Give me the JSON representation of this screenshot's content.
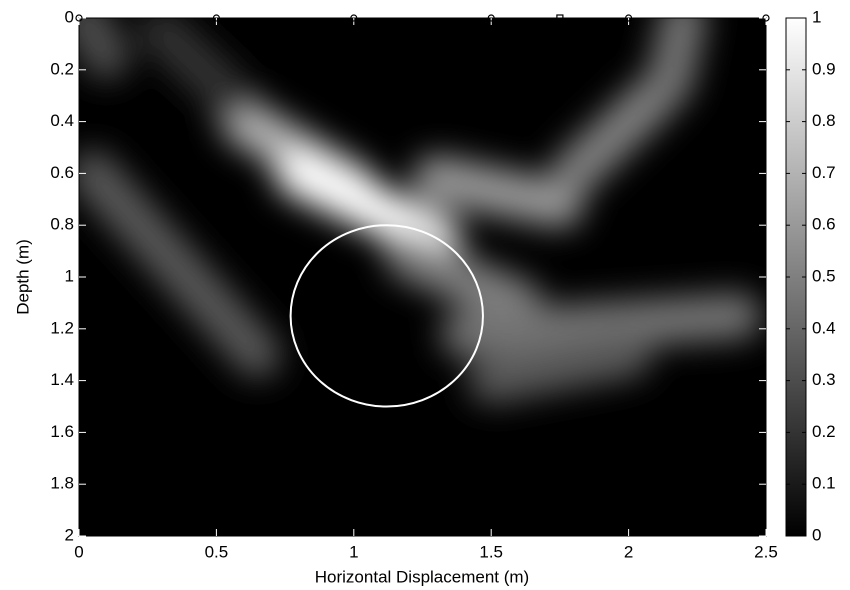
{
  "chart_data": {
    "type": "heatmap",
    "xlabel": "Horizontal Displacement (m)",
    "ylabel": "Depth (m)",
    "xlim": [
      0,
      2.5
    ],
    "xticks": [
      0,
      0.5,
      1,
      1.5,
      2,
      2.5
    ],
    "ylim": [
      2,
      0
    ],
    "yticks": [
      0,
      0.2,
      0.4,
      0.6,
      0.8,
      1,
      1.2,
      1.4,
      1.6,
      1.8,
      2
    ],
    "clim": [
      0,
      1
    ],
    "cticks": [
      0,
      0.1,
      0.2,
      0.3,
      0.4,
      0.5,
      0.6,
      0.7,
      0.8,
      0.9,
      1
    ],
    "ridges": [
      {
        "x": [
          0.6,
          1.0
        ],
        "y": [
          0.4,
          0.65
        ],
        "value": 0.7
      },
      {
        "x": [
          0.8,
          1.3
        ],
        "y": [
          0.6,
          0.85
        ],
        "value": 1
      },
      {
        "x": [
          1.2,
          1.6
        ],
        "y": [
          0.92,
          1.1
        ],
        "value": 0.5
      },
      {
        "x": [
          1.3,
          1.75
        ],
        "y": [
          0.62,
          0.72
        ],
        "value": 0.6
      },
      {
        "x": [
          1.8,
          2.1
        ],
        "y": [
          0.6,
          0.3
        ],
        "value": 0.5
      },
      {
        "x": [
          2.15,
          2.2
        ],
        "y": [
          0.25,
          0
        ],
        "value": 0.45
      },
      {
        "x": [
          0.05,
          0.65
        ],
        "y": [
          0.6,
          1.3
        ],
        "value": 0.35
      },
      {
        "x": [
          1.4,
          2.4
        ],
        "y": [
          1.22,
          1.15
        ],
        "value": 0.45
      },
      {
        "x": [
          1.5,
          2.0
        ],
        "y": [
          1.4,
          1.3
        ],
        "value": 0.35
      },
      {
        "x": [
          0.02,
          0.1
        ],
        "y": [
          0,
          0.15
        ],
        "value": 0.3
      },
      {
        "x": [
          0.3,
          0.55
        ],
        "y": [
          0.05,
          0.3
        ],
        "value": 0.2
      }
    ],
    "circle": {
      "x": 1.12,
      "y": 1.15,
      "r": 0.35
    },
    "sensors_x": [
      0,
      0.5,
      1,
      1.5,
      2,
      2.5
    ],
    "source_x": 1.75
  }
}
